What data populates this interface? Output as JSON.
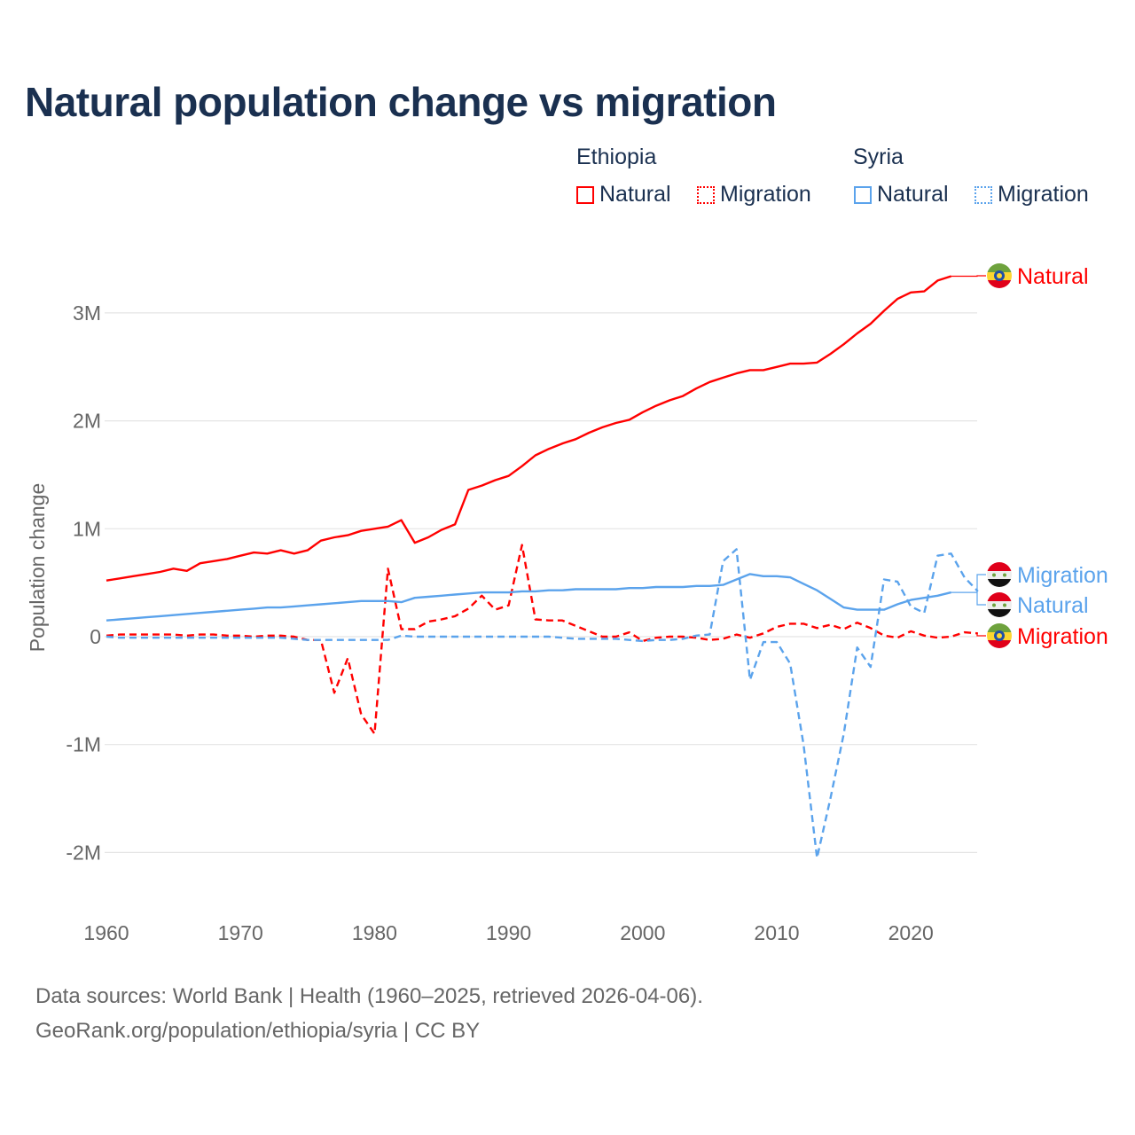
{
  "title": "Natural population change vs migration",
  "legend": {
    "groups": [
      {
        "name": "Ethiopia",
        "items": [
          {
            "label": "Natural",
            "style": "solid",
            "color": "#ff0000"
          },
          {
            "label": "Migration",
            "style": "dotted",
            "color": "#ff0000"
          }
        ]
      },
      {
        "name": "Syria",
        "items": [
          {
            "label": "Natural",
            "style": "solid",
            "color": "#5ba3ec"
          },
          {
            "label": "Migration",
            "style": "dotted",
            "color": "#5ba3ec"
          }
        ]
      }
    ]
  },
  "footer": {
    "line1": "Data sources: World Bank | Health (1960–2025, retrieved 2026-04-06).",
    "line2": "GeoRank.org/population/ethiopia/syria | CC BY"
  },
  "chart_data": {
    "type": "line",
    "title": "Natural population change vs migration",
    "xlabel": "",
    "ylabel": "Population change",
    "xlim": [
      1960,
      2025
    ],
    "ylim": [
      -2000000,
      3500000
    ],
    "x_ticks": [
      1960,
      1970,
      1980,
      1990,
      2000,
      2010,
      2020
    ],
    "x_tick_labels": [
      "1960",
      "1970",
      "1980",
      "1990",
      "2000",
      "2010",
      "2020"
    ],
    "y_ticks": [
      -2000000,
      -1000000,
      0,
      1000000,
      2000000,
      3000000
    ],
    "y_tick_labels": [
      "-2M",
      "-1M",
      "0",
      "1M",
      "2M",
      "3M"
    ],
    "grid": true,
    "legend_position": "top-right",
    "series": [
      {
        "name": "Ethiopia Natural",
        "end_label": "Natural",
        "country": "Ethiopia",
        "color": "#ff0000",
        "dash": false,
        "start_year": 1960,
        "values_millions": [
          0.52,
          0.54,
          0.56,
          0.58,
          0.6,
          0.63,
          0.61,
          0.68,
          0.7,
          0.72,
          0.75,
          0.78,
          0.77,
          0.8,
          0.77,
          0.8,
          0.89,
          0.92,
          0.94,
          0.98,
          1.0,
          1.02,
          1.08,
          0.87,
          0.92,
          0.99,
          1.04,
          1.36,
          1.4,
          1.45,
          1.49,
          1.58,
          1.68,
          1.74,
          1.79,
          1.83,
          1.89,
          1.94,
          1.98,
          2.01,
          2.08,
          2.14,
          2.19,
          2.23,
          2.3,
          2.36,
          2.4,
          2.44,
          2.47,
          2.47,
          2.5,
          2.53,
          2.53,
          2.54,
          2.62,
          2.71,
          2.81,
          2.9,
          3.02,
          3.13,
          3.19,
          3.2,
          3.3,
          3.34
        ]
      },
      {
        "name": "Ethiopia Migration",
        "end_label": "Migration",
        "country": "Ethiopia",
        "color": "#ff0000",
        "dash": true,
        "start_year": 1960,
        "values_millions": [
          0.01,
          0.02,
          0.02,
          0.02,
          0.02,
          0.02,
          0.01,
          0.02,
          0.02,
          0.01,
          0.01,
          0.0,
          0.01,
          0.01,
          0.0,
          -0.03,
          -0.03,
          -0.52,
          -0.2,
          -0.72,
          -0.9,
          0.63,
          0.07,
          0.07,
          0.14,
          0.16,
          0.19,
          0.26,
          0.38,
          0.25,
          0.29,
          0.85,
          0.16,
          0.15,
          0.15,
          0.1,
          0.05,
          0.0,
          0.0,
          0.04,
          -0.04,
          -0.01,
          0.0,
          0.0,
          -0.01,
          -0.03,
          -0.02,
          0.02,
          -0.01,
          0.03,
          0.09,
          0.12,
          0.12,
          0.08,
          0.11,
          0.07,
          0.13,
          0.08,
          0.01,
          -0.01,
          0.05,
          0.01,
          -0.01,
          0.0,
          0.04,
          0.03
        ]
      },
      {
        "name": "Syria Natural",
        "end_label": "Natural",
        "country": "Syria",
        "color": "#5ba3ec",
        "dash": false,
        "start_year": 1960,
        "values_millions": [
          0.15,
          0.16,
          0.17,
          0.18,
          0.19,
          0.2,
          0.21,
          0.22,
          0.23,
          0.24,
          0.25,
          0.26,
          0.27,
          0.27,
          0.28,
          0.29,
          0.3,
          0.31,
          0.32,
          0.33,
          0.33,
          0.33,
          0.32,
          0.36,
          0.37,
          0.38,
          0.39,
          0.4,
          0.41,
          0.41,
          0.41,
          0.42,
          0.42,
          0.43,
          0.43,
          0.44,
          0.44,
          0.44,
          0.44,
          0.45,
          0.45,
          0.46,
          0.46,
          0.46,
          0.47,
          0.47,
          0.48,
          0.53,
          0.58,
          0.56,
          0.56,
          0.55,
          0.49,
          0.43,
          0.35,
          0.27,
          0.25,
          0.25,
          0.25,
          0.3,
          0.34,
          0.36,
          0.38,
          0.41
        ]
      },
      {
        "name": "Syria Migration",
        "end_label": "Migration",
        "country": "Syria",
        "color": "#5ba3ec",
        "dash": true,
        "start_year": 1960,
        "values_millions": [
          0.0,
          -0.01,
          -0.01,
          -0.01,
          -0.01,
          -0.01,
          -0.01,
          -0.01,
          -0.01,
          -0.01,
          -0.01,
          -0.01,
          -0.01,
          -0.01,
          -0.02,
          -0.03,
          -0.03,
          -0.03,
          -0.03,
          -0.03,
          -0.03,
          -0.03,
          0.01,
          0.0,
          0.0,
          0.0,
          0.0,
          0.0,
          0.0,
          0.0,
          0.0,
          0.0,
          0.0,
          0.0,
          -0.01,
          -0.02,
          -0.02,
          -0.02,
          -0.02,
          -0.03,
          -0.04,
          -0.03,
          -0.03,
          -0.02,
          0.01,
          0.02,
          0.7,
          0.81,
          -0.4,
          -0.05,
          -0.05,
          -0.25,
          -1.0,
          -2.05,
          -1.5,
          -0.9,
          -0.1,
          -0.28,
          0.53,
          0.51,
          0.28,
          0.22,
          0.75,
          0.77,
          0.55,
          0.42
        ]
      }
    ]
  }
}
